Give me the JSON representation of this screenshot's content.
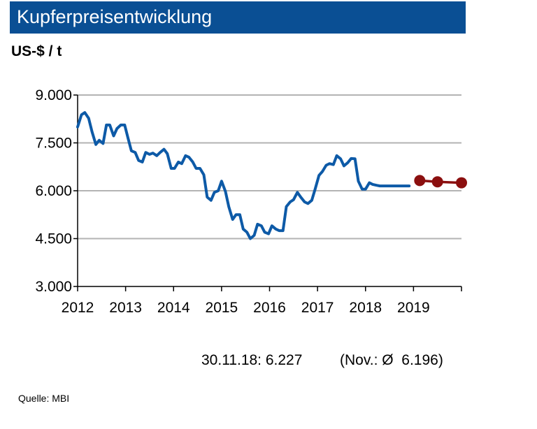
{
  "title": "Kupferpreisentwicklung",
  "unit_label": "US-$ / t",
  "note_date": "30.11.18: 6.227",
  "note_avg": "(Nov.: Ø  6.196)",
  "source": "Quelle:  MBI",
  "colors": {
    "title_bg": "#0a4f94",
    "actual": "#0d5aa7",
    "forecast": "#8b0f0f",
    "grid": "#b3b3b3"
  },
  "chart_data": {
    "type": "line",
    "title": "Kupferpreisentwicklung",
    "ylabel": "US-$ / t",
    "ylim": [
      3000,
      9000
    ],
    "xlim": [
      2012,
      2020
    ],
    "y_ticks": [
      {
        "value": 3000,
        "label": "3.000"
      },
      {
        "value": 4500,
        "label": "4.500"
      },
      {
        "value": 6000,
        "label": "6.000"
      },
      {
        "value": 7500,
        "label": "7.500"
      },
      {
        "value": 9000,
        "label": "9.000"
      }
    ],
    "x_ticks": [
      {
        "value": 2012,
        "label": "2012"
      },
      {
        "value": 2013,
        "label": "2013"
      },
      {
        "value": 2014,
        "label": "2014"
      },
      {
        "value": 2015,
        "label": "2015"
      },
      {
        "value": 2016,
        "label": "2016"
      },
      {
        "value": 2017,
        "label": "2017"
      },
      {
        "value": 2018,
        "label": "2018"
      },
      {
        "value": 2019,
        "label": "2019"
      }
    ],
    "grid": "horizontal",
    "series": [
      {
        "kind": "actual",
        "x": [
          2012.0,
          2012.08,
          2012.15,
          2012.23,
          2012.3,
          2012.38,
          2012.45,
          2012.53,
          2012.6,
          2012.67,
          2012.75,
          2012.82,
          2012.9,
          2012.98,
          2013.05,
          2013.12,
          2013.2,
          2013.27,
          2013.35,
          2013.42,
          2013.5,
          2013.57,
          2013.65,
          2013.72,
          2013.8,
          2013.87,
          2013.95,
          2014.02,
          2014.1,
          2014.17,
          2014.25,
          2014.32,
          2014.4,
          2014.47,
          2014.55,
          2014.63,
          2014.7,
          2014.78,
          2014.85,
          2014.93,
          2015.0,
          2015.08,
          2015.15,
          2015.23,
          2015.3,
          2015.38,
          2015.45,
          2015.53,
          2015.6,
          2015.68,
          2015.75,
          2015.83,
          2015.9,
          2015.98,
          2016.05,
          2016.13,
          2016.2,
          2016.28,
          2016.35,
          2016.43,
          2016.5,
          2016.58,
          2016.65,
          2016.73,
          2016.8,
          2016.88,
          2016.95,
          2017.03,
          2017.1,
          2017.18,
          2017.25,
          2017.33,
          2017.4,
          2017.48,
          2017.55,
          2017.63,
          2017.7,
          2017.78,
          2017.85,
          2017.93,
          2018.0,
          2018.08,
          2018.15,
          2018.23,
          2018.3,
          2018.38,
          2018.45,
          2018.53,
          2018.6,
          2018.68,
          2018.75,
          2018.83,
          2018.91
        ],
        "y": [
          8000,
          8380,
          8450,
          8270,
          7850,
          7450,
          7580,
          7480,
          8060,
          8060,
          7720,
          7950,
          8060,
          8060,
          7650,
          7250,
          7200,
          6950,
          6900,
          7200,
          7140,
          7180,
          7100,
          7200,
          7300,
          7160,
          6700,
          6700,
          6900,
          6850,
          7100,
          7050,
          6900,
          6700,
          6700,
          6500,
          5800,
          5700,
          5950,
          6000,
          6300,
          5980,
          5500,
          5100,
          5250,
          5250,
          4800,
          4700,
          4500,
          4600,
          4950,
          4900,
          4700,
          4650,
          4900,
          4800,
          4750,
          4750,
          5500,
          5650,
          5720,
          5950,
          5800,
          5650,
          5600,
          5700,
          6050,
          6480,
          6600,
          6800,
          6850,
          6820,
          7100,
          7000,
          6780,
          6880,
          7010,
          7000,
          6300,
          6050,
          6050,
          6250,
          6200,
          6170,
          6150,
          6150,
          6150,
          6150,
          6150,
          6150,
          6150,
          6150,
          6150
        ]
      },
      {
        "kind": "forecast",
        "x": [
          2019.13,
          2019.5,
          2020.0
        ],
        "y": [
          6320,
          6280,
          6250
        ]
      }
    ]
  }
}
